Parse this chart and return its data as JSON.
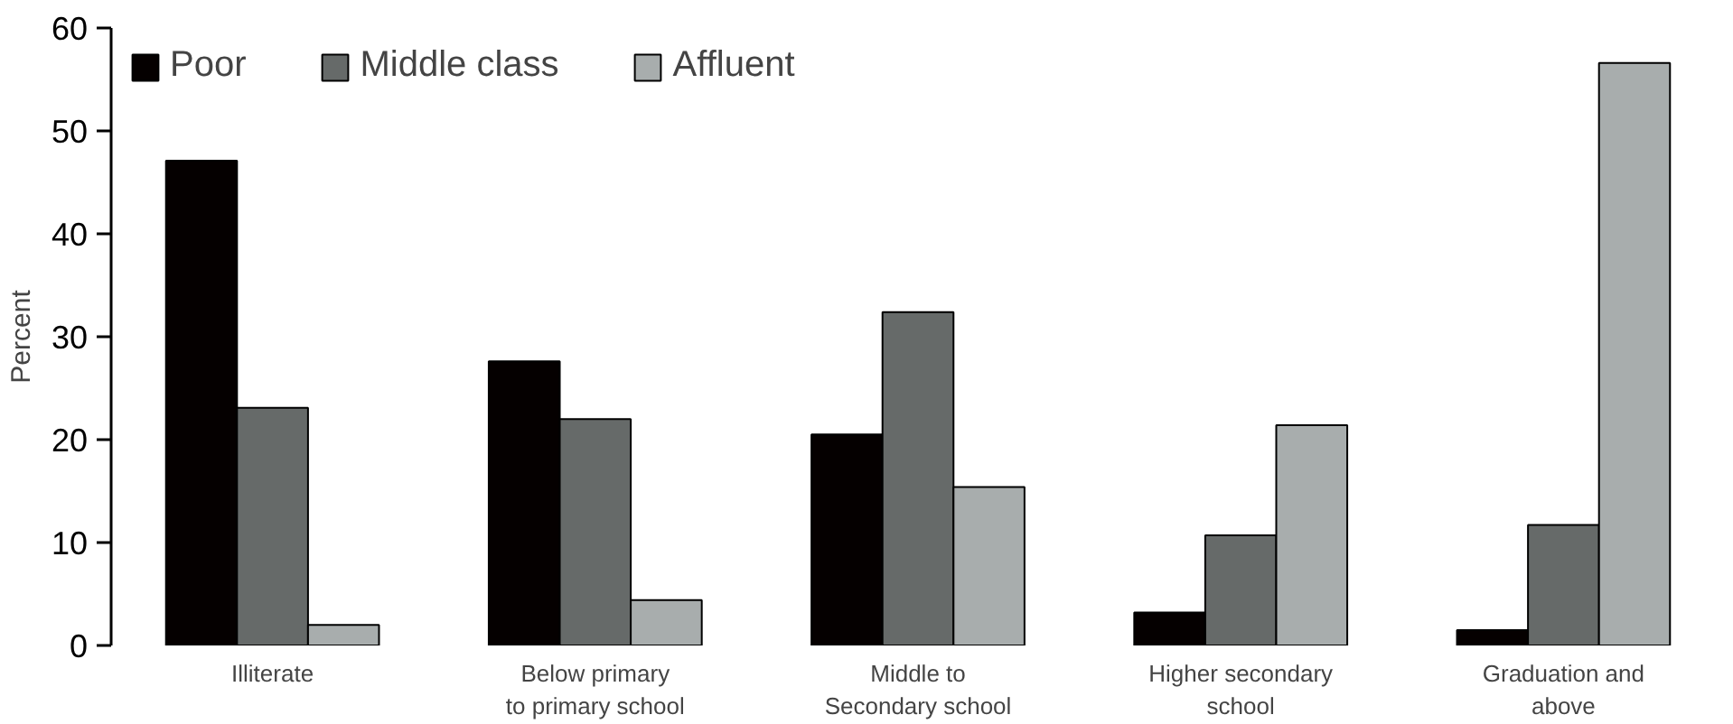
{
  "chart_data": {
    "type": "bar",
    "ylabel": "Percent",
    "categories": [
      "Illiterate",
      "Below primary\nto primary school",
      "Middle to\nSecondary school",
      "Higher secondary\nschool",
      "Graduation and\nabove"
    ],
    "series": [
      {
        "name": "Poor",
        "color": "#050000",
        "values": [
          47.1,
          27.6,
          20.5,
          3.2,
          1.5
        ]
      },
      {
        "name": "Middle class",
        "color": "#666a69",
        "values": [
          23.1,
          22.0,
          32.4,
          10.7,
          11.7
        ]
      },
      {
        "name": "Affluent",
        "color": "#a8adad",
        "values": [
          2.0,
          4.4,
          15.4,
          21.4,
          56.6
        ]
      }
    ],
    "ylim": [
      0,
      60
    ],
    "yticks": [
      0,
      10,
      20,
      30,
      40,
      50,
      60
    ],
    "grid": false,
    "legend": "top left"
  }
}
